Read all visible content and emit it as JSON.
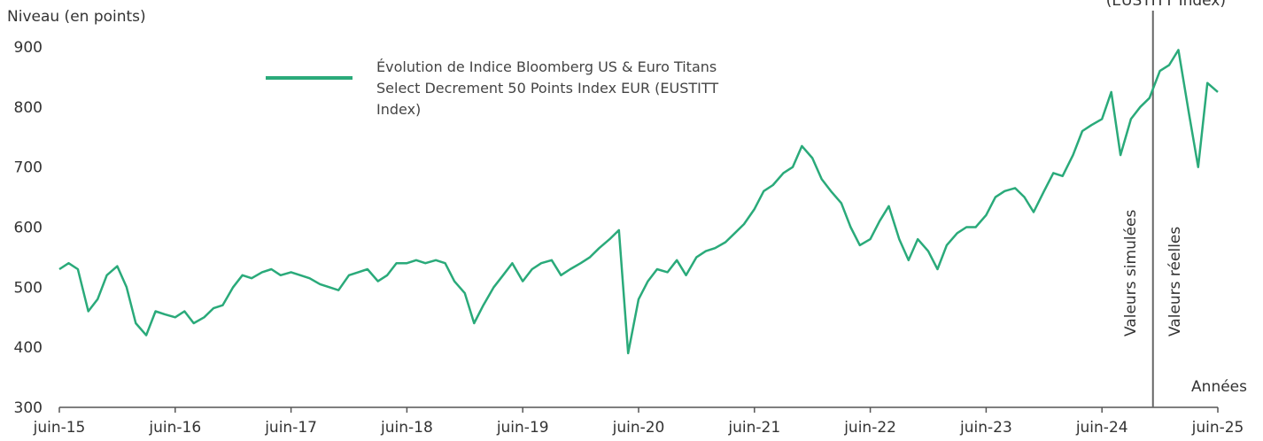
{
  "chart_data": {
    "type": "line",
    "y_label": "Niveau (en points)",
    "x_label": "Années",
    "annotation": "(EUSTITT Index)",
    "divider": {
      "x": 2024.86,
      "left_label": "Valeurs simulées",
      "right_label": "Valeurs réelles"
    },
    "ylim": [
      300,
      900
    ],
    "yticks": [
      300,
      400,
      500,
      600,
      700,
      800,
      900
    ],
    "xlim": [
      2015.42,
      2025.42
    ],
    "xticks": [
      {
        "value": 2015.42,
        "label": "juin-15"
      },
      {
        "value": 2016.42,
        "label": "juin-16"
      },
      {
        "value": 2017.42,
        "label": "juin-17"
      },
      {
        "value": 2018.42,
        "label": "juin-18"
      },
      {
        "value": 2019.42,
        "label": "juin-19"
      },
      {
        "value": 2020.42,
        "label": "juin-20"
      },
      {
        "value": 2021.42,
        "label": "juin-21"
      },
      {
        "value": 2022.42,
        "label": "juin-22"
      },
      {
        "value": 2023.42,
        "label": "juin-23"
      },
      {
        "value": 2024.42,
        "label": "juin-24"
      },
      {
        "value": 2025.42,
        "label": "juin-25"
      }
    ],
    "x": [
      2015.42,
      2015.5,
      2015.58,
      2015.67,
      2015.75,
      2015.83,
      2015.92,
      2016.0,
      2016.08,
      2016.17,
      2016.25,
      2016.33,
      2016.42,
      2016.5,
      2016.58,
      2016.67,
      2016.75,
      2016.83,
      2016.92,
      2017.0,
      2017.08,
      2017.17,
      2017.25,
      2017.33,
      2017.42,
      2017.5,
      2017.58,
      2017.67,
      2017.75,
      2017.83,
      2017.92,
      2018.0,
      2018.08,
      2018.17,
      2018.25,
      2018.33,
      2018.42,
      2018.5,
      2018.58,
      2018.67,
      2018.75,
      2018.83,
      2018.92,
      2019.0,
      2019.08,
      2019.17,
      2019.25,
      2019.33,
      2019.42,
      2019.5,
      2019.58,
      2019.67,
      2019.75,
      2019.83,
      2019.92,
      2020.0,
      2020.08,
      2020.17,
      2020.25,
      2020.33,
      2020.42,
      2020.5,
      2020.58,
      2020.67,
      2020.75,
      2020.83,
      2020.92,
      2021.0,
      2021.08,
      2021.17,
      2021.25,
      2021.33,
      2021.42,
      2021.5,
      2021.58,
      2021.67,
      2021.75,
      2021.83,
      2021.92,
      2022.0,
      2022.08,
      2022.17,
      2022.25,
      2022.33,
      2022.42,
      2022.5,
      2022.58,
      2022.67,
      2022.75,
      2022.83,
      2022.92,
      2023.0,
      2023.08,
      2023.17,
      2023.25,
      2023.33,
      2023.42,
      2023.5,
      2023.58,
      2023.67,
      2023.75,
      2023.83,
      2023.92,
      2024.0,
      2024.08,
      2024.17,
      2024.25,
      2024.33,
      2024.42,
      2024.5,
      2024.58,
      2024.67,
      2024.75,
      2024.83,
      2024.92,
      2025.0,
      2025.08,
      2025.17,
      2025.25,
      2025.33,
      2025.42
    ],
    "series": [
      {
        "name": "Évolution de Indice Bloomberg US & Euro Titans Select Decrement 50 Points Index EUR (EUSTITT Index)",
        "color": "#2aaa7a",
        "values": [
          530,
          540,
          530,
          460,
          480,
          520,
          535,
          500,
          440,
          420,
          460,
          455,
          450,
          460,
          440,
          450,
          465,
          470,
          500,
          520,
          515,
          525,
          530,
          520,
          525,
          520,
          515,
          505,
          500,
          495,
          520,
          525,
          530,
          510,
          520,
          540,
          540,
          545,
          540,
          545,
          540,
          510,
          490,
          440,
          470,
          500,
          520,
          540,
          510,
          530,
          540,
          545,
          520,
          530,
          540,
          550,
          565,
          580,
          595,
          390,
          480,
          510,
          530,
          525,
          545,
          520,
          550,
          560,
          565,
          575,
          590,
          605,
          630,
          660,
          670,
          690,
          700,
          735,
          715,
          680,
          660,
          640,
          600,
          570,
          580,
          610,
          635,
          580,
          545,
          580,
          560,
          530,
          570,
          590,
          600,
          600,
          620,
          650,
          660,
          665,
          650,
          625,
          660,
          690,
          685,
          720,
          760,
          770,
          780,
          825,
          720,
          780,
          800,
          815,
          860,
          870,
          895,
          790,
          700,
          840,
          825
        ]
      }
    ]
  }
}
